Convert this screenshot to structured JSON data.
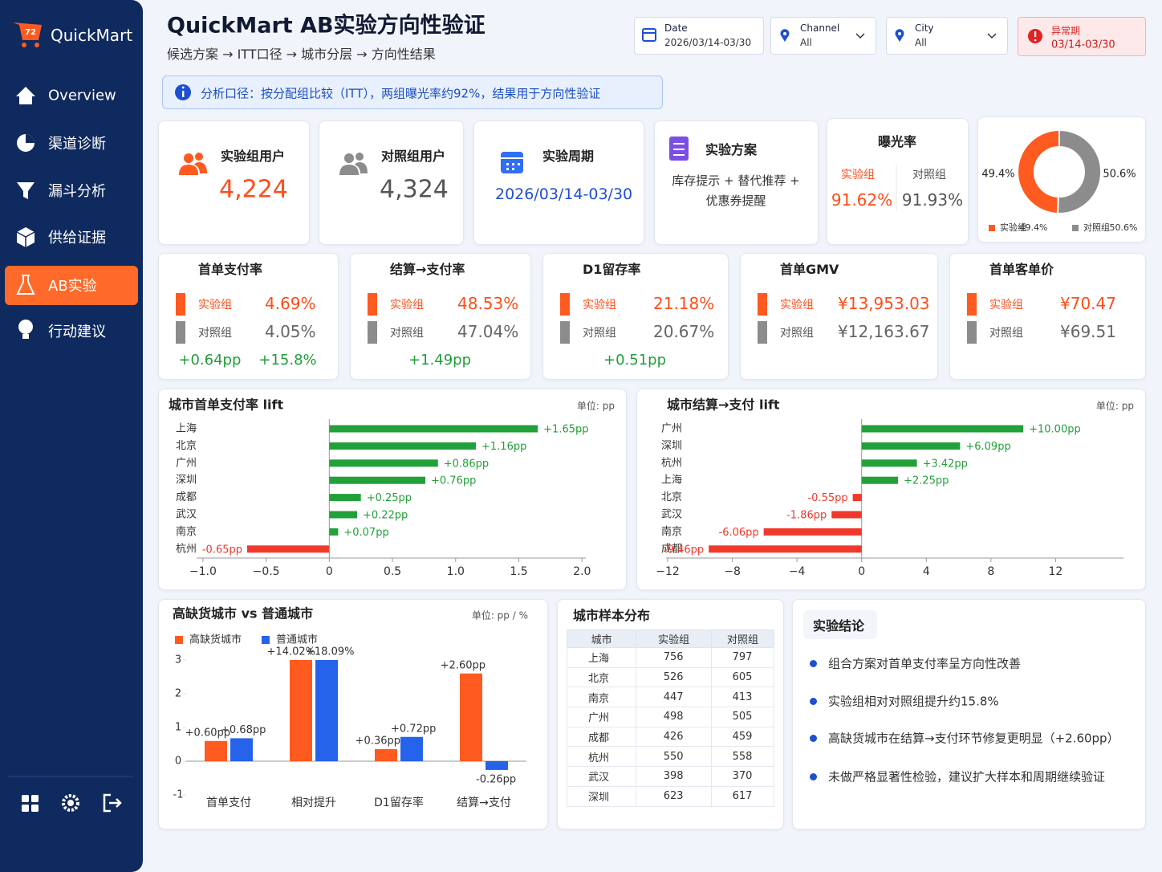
{
  "sidebar": {
    "brand": "QuickMart",
    "badge": "72",
    "nav": [
      "Overview",
      "渠道诊断",
      "漏斗分析",
      "供给证据",
      "AB实验",
      "行动建议"
    ]
  },
  "header": {
    "title": "QuickMart AB实验方向性验证",
    "breadcrumb": "候选方案 → ITT口径 → 城市分层 → 方向性结果"
  },
  "filters": [
    {
      "label": "Date",
      "value": "2026/03/14-03/30"
    },
    {
      "label": "Channel",
      "value": "All"
    },
    {
      "label": "City",
      "value": "All"
    }
  ],
  "alert": {
    "label": "异常期",
    "value": "03/14-03/30"
  },
  "notice": "分析口径：按分配组比较（ITT），两组曝光率约92%，结果用于方向性验证",
  "kpis": {
    "treatment_users": {
      "label": "实验组用户",
      "value": "4,224"
    },
    "control_users": {
      "label": "对照组用户",
      "value": "4,324"
    },
    "period": {
      "label": "实验周期",
      "value": "2026/03/14-03/30"
    },
    "plan": {
      "label": "实验方案",
      "value": "库存提示 + 替代推荐 + 优惠券提醒"
    },
    "exposure": {
      "label": "曝光率",
      "groups": [
        "实验组",
        "对照组"
      ],
      "values": [
        "91.62%",
        "91.93%"
      ]
    }
  },
  "metric_groups": [
    "实验组",
    "对照组"
  ],
  "metrics": [
    {
      "title": "首单支付率",
      "values": [
        "4.69%",
        "4.05%"
      ],
      "deltas": [
        "+0.64pp",
        "+15.8%"
      ]
    },
    {
      "title": "结算→支付率",
      "values": [
        "48.53%",
        "47.04%"
      ],
      "deltas": [
        "+1.49pp"
      ]
    },
    {
      "title": "D1留存率",
      "values": [
        "21.18%",
        "20.67%"
      ],
      "deltas": [
        "+0.51pp"
      ]
    },
    {
      "title": "首单GMV",
      "values": [
        "¥13,953.03",
        "¥12,163.67"
      ]
    },
    {
      "title": "首单客单价",
      "values": [
        "¥70.47",
        "¥69.51"
      ]
    }
  ],
  "table": {
    "title": "城市样本分布",
    "header": [
      "城市",
      "实验组",
      "对照组"
    ],
    "rows": [
      [
        "上海",
        756,
        797
      ],
      [
        "北京",
        526,
        605
      ],
      [
        "南京",
        447,
        413
      ],
      [
        "广州",
        498,
        505
      ],
      [
        "成都",
        426,
        459
      ],
      [
        "杭州",
        550,
        558
      ],
      [
        "武汉",
        398,
        370
      ],
      [
        "深圳",
        623,
        617
      ]
    ]
  },
  "conclusions": {
    "title": "实验结论",
    "items": [
      "组合方案对首单支付率呈方向性改善",
      "实验组相对对照组提升约15.8%",
      "高缺货城市在结算→支付环节修复更明显（+2.60pp）",
      "未做严格显著性检验，建议扩大样本和周期继续验证"
    ]
  },
  "chart_data": [
    {
      "type": "pie",
      "categories": [
        "实验组",
        "对照组"
      ],
      "values": [
        49.4,
        50.6
      ],
      "value_labels": [
        "49.4%",
        "50.6%"
      ],
      "colors": [
        "#ff5a1f",
        "#8c8c8c"
      ]
    },
    {
      "type": "hbar",
      "title": "城市首单支付率 lift",
      "unit": "单位: pp",
      "categories": [
        "上海",
        "北京",
        "广州",
        "深圳",
        "成都",
        "武汉",
        "南京",
        "杭州"
      ],
      "values": [
        1.65,
        1.16,
        0.86,
        0.76,
        0.25,
        0.22,
        0.07,
        -0.65
      ],
      "value_labels": [
        "+1.65pp",
        "+1.16pp",
        "+0.86pp",
        "+0.76pp",
        "+0.25pp",
        "+0.22pp",
        "+0.07pp",
        "-0.65pp"
      ],
      "xlim": [
        -1.05,
        2.03
      ],
      "xticks": [
        {
          "value": -1,
          "label": "−1.0"
        },
        {
          "value": -0.5,
          "label": "−0.5"
        },
        0,
        0.5,
        {
          "value": 1,
          "label": "1.0"
        },
        1.5,
        {
          "value": 2,
          "label": "2.0"
        }
      ],
      "positive_color": "#22a03a",
      "negative_color": "#f0392b"
    },
    {
      "type": "hbar",
      "title": "城市结算→支付 lift",
      "unit": "单位: pp",
      "categories": [
        "广州",
        "深圳",
        "杭州",
        "上海",
        "北京",
        "武汉",
        "南京",
        "成都"
      ],
      "values": [
        10.0,
        6.09,
        3.42,
        2.25,
        -0.55,
        -1.86,
        -6.06,
        -9.46
      ],
      "value_labels": [
        "+10.00pp",
        "+6.09pp",
        "+3.42pp",
        "+2.25pp",
        "-0.55pp",
        "-1.86pp",
        "-6.06pp",
        "-9.46pp"
      ],
      "xlim": [
        -12.1,
        16.2
      ],
      "xticks": [
        {
          "value": -12,
          "label": "−12"
        },
        {
          "value": -8,
          "label": "−8"
        },
        {
          "value": -4,
          "label": "−4"
        },
        0,
        4,
        8,
        12
      ],
      "positive_color": "#22a03a",
      "negative_color": "#f0392b"
    },
    {
      "type": "grouped_bar",
      "title": "高缺货城市 vs 普通城市",
      "unit": "单位: pp / %",
      "categories": [
        "首单支付",
        "相对提升",
        "D1留存率",
        "结算→支付"
      ],
      "series": [
        {
          "name": "高缺货城市",
          "color": "#ff5a1f",
          "values": [
            0.6,
            14.02,
            0.36,
            2.6
          ],
          "value_labels": [
            "+0.60pp",
            "+14.02%",
            "+0.36pp",
            "+2.60pp"
          ]
        },
        {
          "name": "普通城市",
          "color": "#2563eb",
          "values": [
            0.68,
            18.09,
            0.72,
            -0.26
          ],
          "value_labels": [
            "+0.68pp",
            "+18.09%",
            "+0.72pp",
            "-0.26pp"
          ]
        }
      ],
      "ylim": [
        -1,
        3
      ],
      "yticks": [
        3,
        2,
        1,
        0,
        -1
      ],
      "legend": "top-left"
    }
  ]
}
